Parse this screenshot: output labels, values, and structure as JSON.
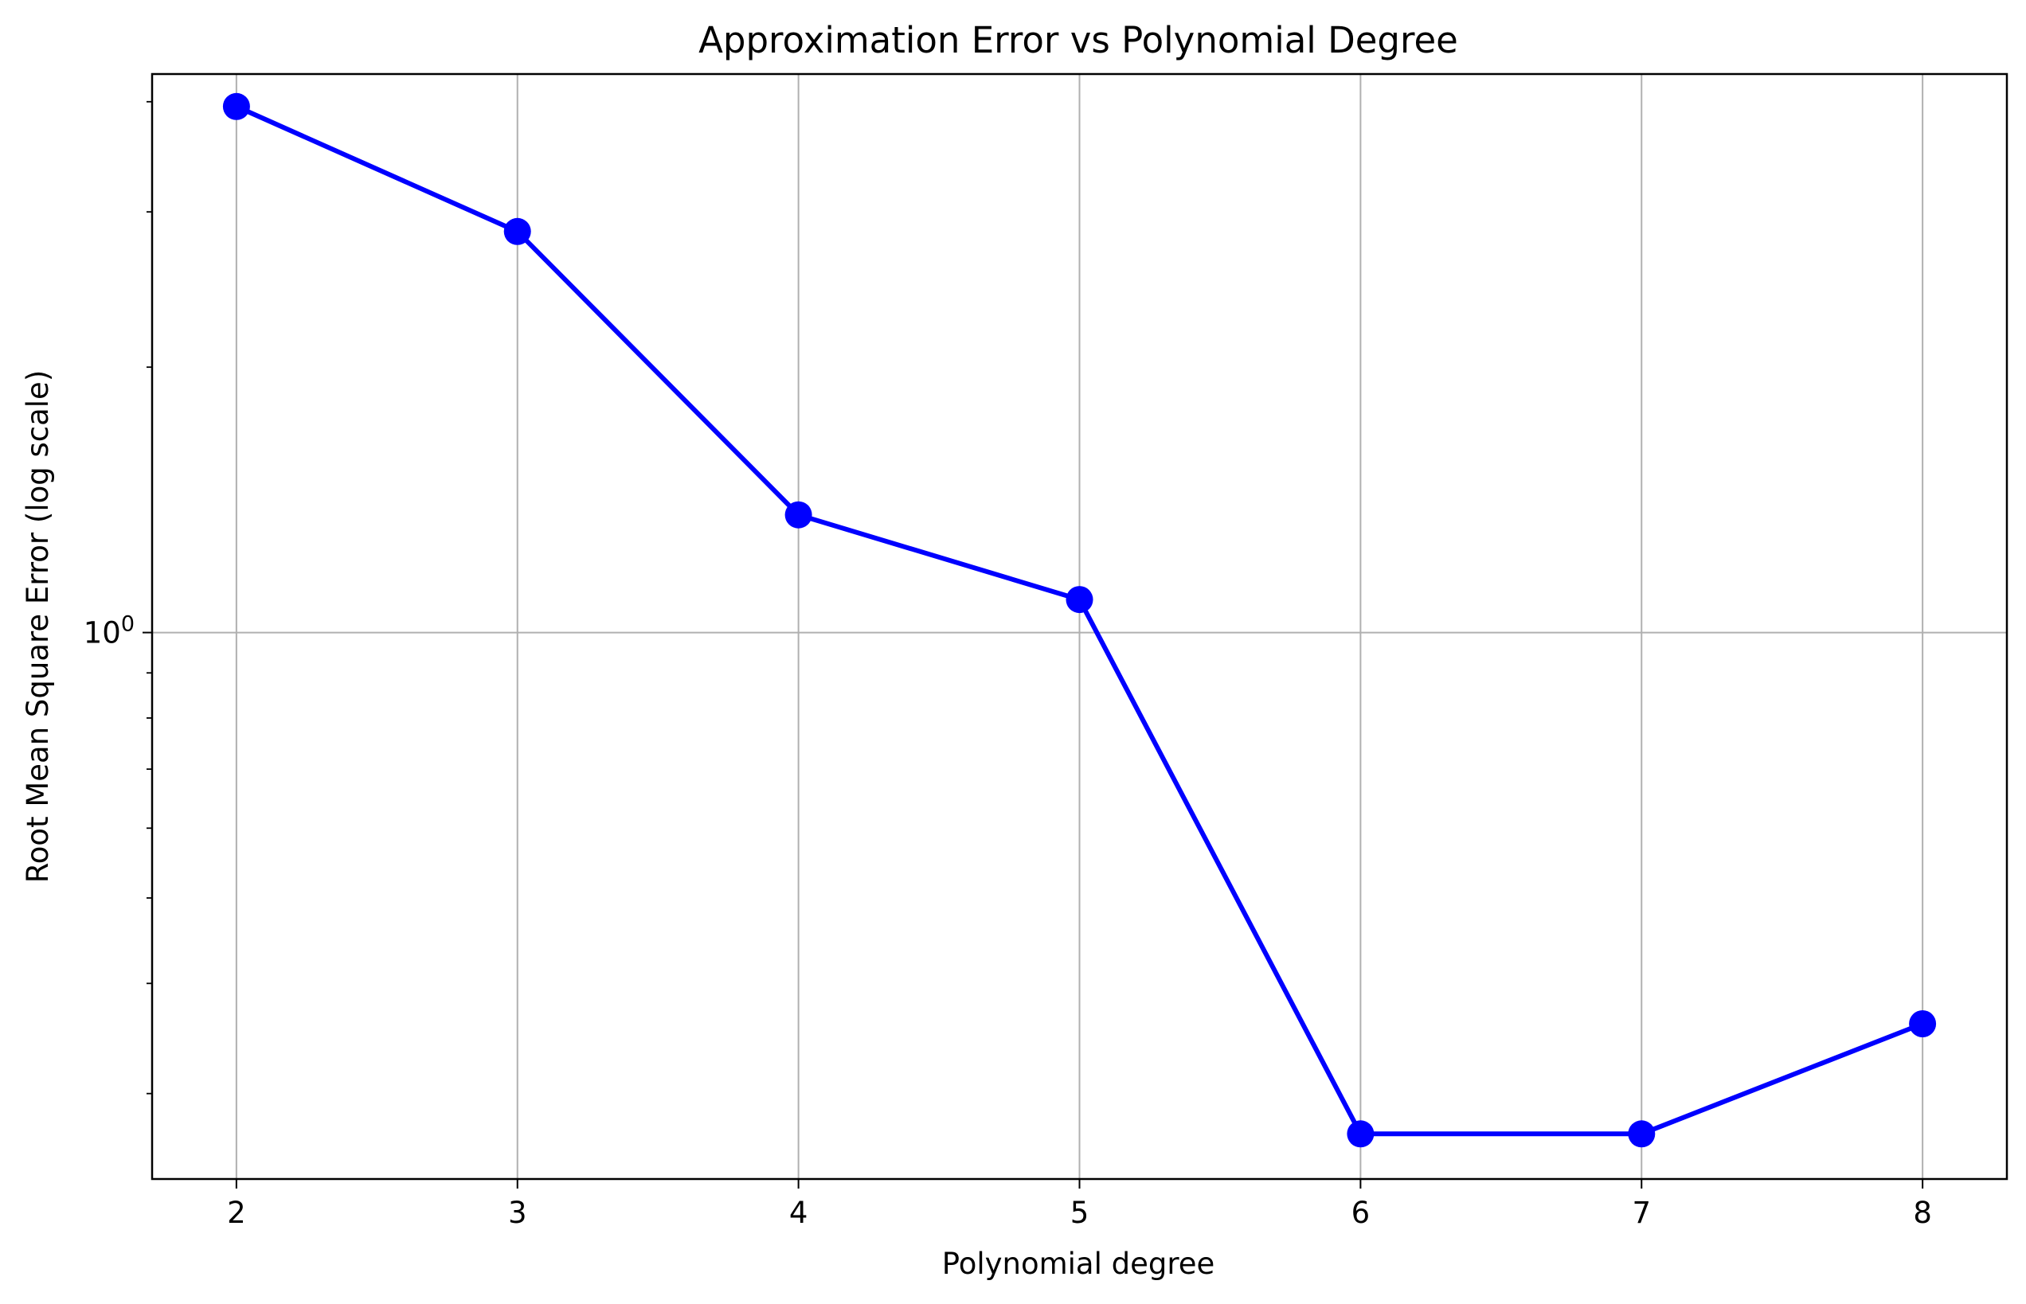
{
  "chart_data": {
    "type": "line",
    "title": "Approximation Error vs Polynomial Degree",
    "xlabel": "Polynomial degree",
    "ylabel": "Root Mean Square Error (log scale)",
    "x": [
      2,
      3,
      4,
      5,
      6,
      7,
      8
    ],
    "x_tick_labels": [
      "2",
      "3",
      "4",
      "5",
      "6",
      "7",
      "8"
    ],
    "xlim": [
      1.7,
      8.3
    ],
    "yscale": "log",
    "ylim": [
      0.24,
      4.3
    ],
    "y_major_ticks": [
      1
    ],
    "y_major_tick_labels": [
      {
        "base": "10",
        "exp": "0"
      }
    ],
    "y_minor_ticks": [
      0.3,
      0.4,
      0.5,
      0.6,
      0.7,
      0.8,
      0.9,
      2,
      3,
      4
    ],
    "grid": true,
    "colors": {
      "line": "#0000ff",
      "marker": "#0000ff",
      "grid": "#b0b0b0",
      "axes": "#000000"
    },
    "series": [
      {
        "marker": "circle",
        "values": [
          3.95,
          2.85,
          1.36,
          1.09,
          0.27,
          0.27,
          0.36
        ]
      }
    ]
  }
}
